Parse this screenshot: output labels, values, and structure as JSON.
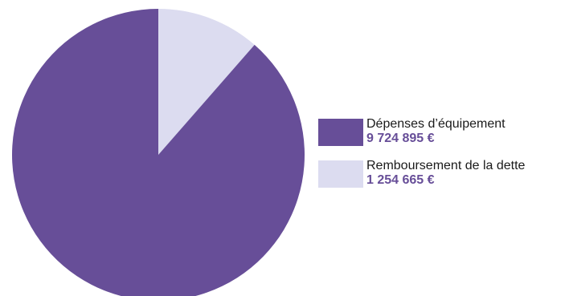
{
  "chart_data": {
    "type": "pie",
    "start_angle_deg": 0,
    "direction": "clockwise",
    "slices": [
      {
        "label": "Remboursement de la dette",
        "value": 1254665,
        "value_label": "1 254 665 €",
        "color": "#dcdcf0"
      },
      {
        "label": "Dépenses d’équipement",
        "value": 9724895,
        "value_label": "9 724 895 €",
        "color": "#674e98"
      }
    ],
    "legend": {
      "placement": "right",
      "order": [
        1,
        0
      ]
    },
    "value_text_color": "#674e98"
  }
}
